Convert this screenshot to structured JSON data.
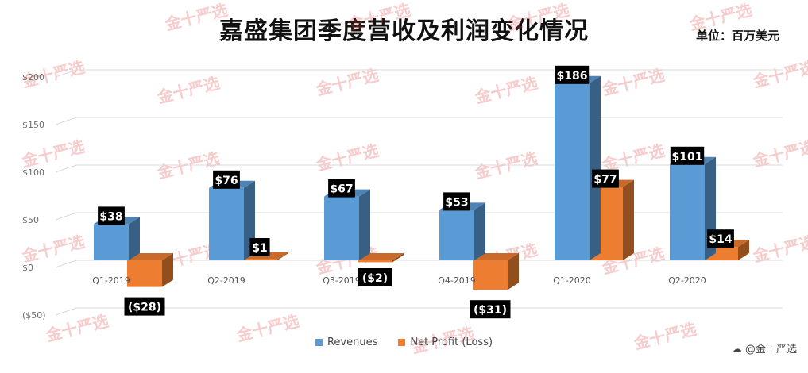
{
  "chart_data": {
    "type": "bar",
    "title": "嘉盛集团季度营收及利润变化情况",
    "unit_label": "单位：",
    "unit_value": "百万美元",
    "categories": [
      "Q1-2019",
      "Q2-2019",
      "Q3-2019",
      "Q4-2019",
      "Q1-2020",
      "Q2-2020"
    ],
    "series": [
      {
        "name": "Revenues",
        "values": [
          38,
          76,
          67,
          53,
          186,
          101
        ],
        "labels": [
          "$38",
          "$76",
          "$67",
          "$53",
          "$186",
          "$101"
        ],
        "color": "#5b9bd5"
      },
      {
        "name": "Net Profit (Loss)",
        "values": [
          -28,
          1,
          -2,
          -31,
          77,
          14
        ],
        "labels": [
          "($28)",
          "$1",
          "($2)",
          "($31)",
          "$77",
          "$14"
        ],
        "color": "#ed7d31"
      }
    ],
    "yticks": [
      "($50)",
      "$0",
      "$50",
      "$100",
      "$150",
      "$200"
    ],
    "ytick_values": [
      -50,
      0,
      50,
      100,
      150,
      200
    ],
    "ylim": [
      -50,
      200
    ],
    "grid": true,
    "legend_position": "bottom",
    "watermark_text": "金十严选"
  },
  "footer": {
    "brand_text": "@金十严选"
  }
}
